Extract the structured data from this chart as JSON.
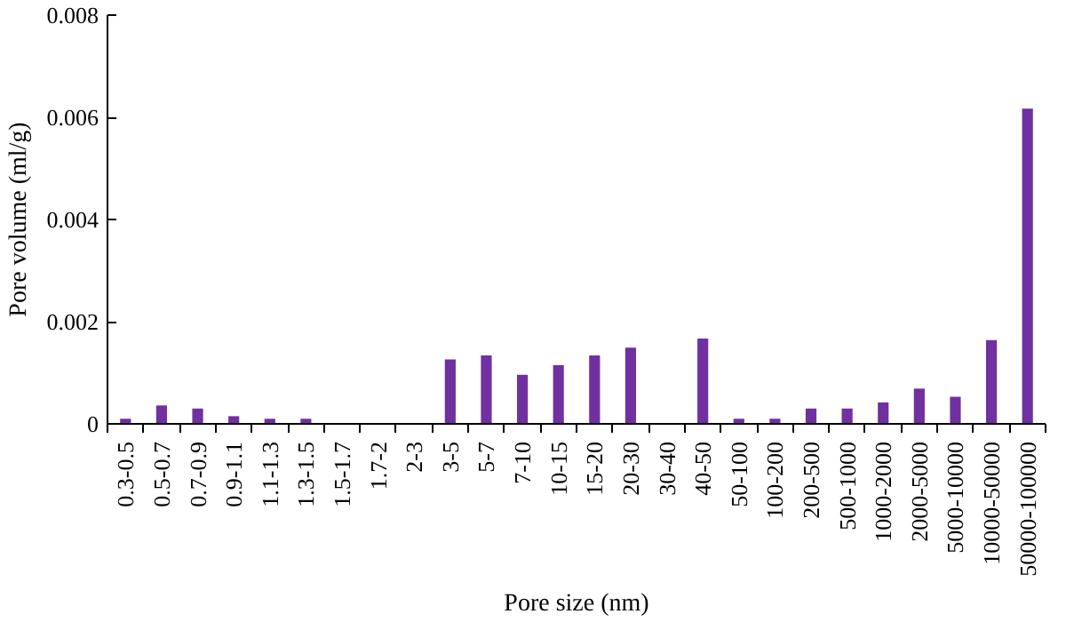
{
  "chart_data": {
    "type": "bar",
    "xlabel": "Pore size (nm)",
    "ylabel": "Pore volume (ml/g)",
    "categories": [
      "0.3-0.5",
      "0.5-0.7",
      "0.7-0.9",
      "0.9-1.1",
      "1.1-1.3",
      "1.3-1.5",
      "1.5-1.7",
      "1.7-2",
      "2-3",
      "3-5",
      "5-7",
      "7-10",
      "10-15",
      "15-20",
      "20-30",
      "30-40",
      "40-50",
      "50-100",
      "100-200",
      "200-500",
      "500-1000",
      "1000-2000",
      "2000-5000",
      "5000-10000",
      "10000-50000",
      "50000-100000"
    ],
    "values": [
      0.0001,
      0.00036,
      0.0003,
      0.00015,
      0.0001,
      0.0001,
      0,
      0,
      0,
      0.00126,
      0.00134,
      0.00096,
      0.00115,
      0.00134,
      0.00149,
      0,
      0.00167,
      0.0001,
      0.0001,
      0.0003,
      0.0003,
      0.00042,
      0.00069,
      0.00053,
      0.00164,
      0.00617
    ],
    "color": "#7030a0",
    "ylim": [
      0,
      0.008
    ],
    "yticks": [
      0,
      0.002,
      0.004,
      0.006,
      0.008
    ],
    "grid": false
  }
}
